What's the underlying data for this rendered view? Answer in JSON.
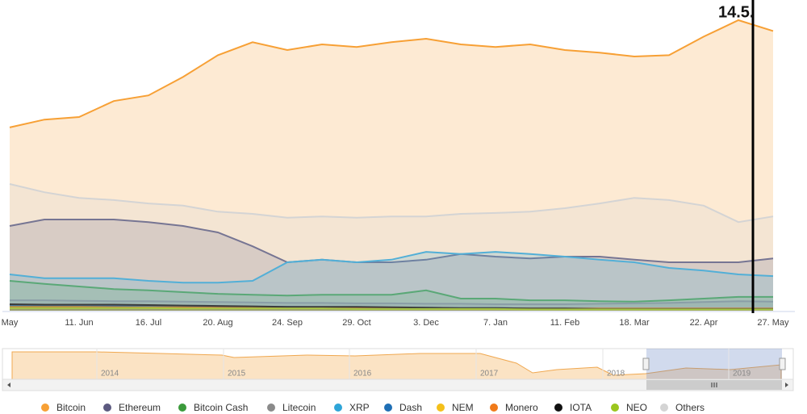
{
  "chart_data": {
    "type": "area",
    "annotation": "14.5.",
    "categories": [
      "May",
      null,
      "11. Jun",
      null,
      "16. Jul",
      null,
      "20. Aug",
      null,
      "24. Sep",
      null,
      "29. Oct",
      null,
      "3. Dec",
      null,
      "7. Jan",
      null,
      "11. Feb",
      null,
      "18. Mar",
      null,
      "22. Apr",
      null,
      "27. May"
    ],
    "ylim": [
      0,
      70
    ],
    "series": [
      {
        "name": "Bitcoin",
        "color": "#f7a035",
        "values": [
          42.4,
          44.2,
          44.8,
          48.5,
          49.8,
          54.1,
          59.1,
          62.1,
          60.3,
          61.6,
          61.0,
          62.1,
          62.9,
          61.6,
          61.0,
          61.6,
          60.3,
          59.7,
          58.8,
          59.1,
          63.4,
          67.2,
          64.7
        ]
      },
      {
        "name": "Ethereum",
        "color": "#5c5a80",
        "values": [
          19.6,
          21.1,
          21.1,
          21.1,
          20.5,
          19.6,
          18.1,
          14.9,
          11.2,
          11.8,
          11.2,
          11.2,
          11.8,
          13.1,
          12.5,
          12.1,
          12.5,
          12.5,
          11.8,
          11.2,
          11.2,
          11.2,
          12.1
        ]
      },
      {
        "name": "Bitcoin Cash",
        "color": "#3b9a3b",
        "values": [
          6.9,
          6.2,
          5.6,
          5.0,
          4.7,
          4.3,
          3.9,
          3.7,
          3.5,
          3.7,
          3.7,
          3.7,
          4.7,
          2.8,
          2.8,
          2.4,
          2.4,
          2.2,
          2.1,
          2.4,
          2.8,
          3.2,
          3.2
        ]
      },
      {
        "name": "Litecoin",
        "color": "#8a8a8a",
        "values": [
          2.4,
          2.4,
          2.3,
          2.2,
          2.2,
          2.1,
          2.0,
          1.9,
          1.8,
          1.8,
          1.7,
          1.7,
          1.6,
          1.6,
          1.5,
          1.5,
          1.5,
          1.6,
          1.7,
          1.8,
          2.0,
          2.2,
          2.1
        ]
      },
      {
        "name": "XRP",
        "color": "#2ea5d8",
        "values": [
          8.4,
          7.5,
          7.5,
          7.5,
          6.9,
          6.5,
          6.5,
          6.9,
          11.2,
          11.8,
          11.2,
          11.8,
          13.6,
          13.1,
          13.6,
          13.1,
          12.5,
          11.8,
          11.2,
          9.9,
          9.3,
          8.4,
          8.0
        ]
      },
      {
        "name": "Dash",
        "color": "#1f6fb5",
        "values": [
          1.2,
          1.2,
          1.2,
          1.1,
          1.1,
          1.0,
          1.0,
          0.9,
          0.9,
          0.8,
          0.8,
          0.7,
          0.7,
          0.6,
          0.6,
          0.5,
          0.5,
          0.5,
          0.5,
          0.5,
          0.5,
          0.5,
          0.5
        ]
      },
      {
        "name": "NEM",
        "color": "#f4c01a",
        "values": [
          0.9,
          0.9,
          0.9,
          0.8,
          0.8,
          0.8,
          0.7,
          0.7,
          0.6,
          0.6,
          0.5,
          0.5,
          0.5,
          0.4,
          0.4,
          0.4,
          0.3,
          0.3,
          0.3,
          0.3,
          0.3,
          0.3,
          0.3
        ]
      },
      {
        "name": "Monero",
        "color": "#f07a1a",
        "values": [
          0.8,
          0.8,
          0.8,
          0.8,
          0.7,
          0.7,
          0.7,
          0.6,
          0.6,
          0.6,
          0.6,
          0.6,
          0.5,
          0.5,
          0.5,
          0.5,
          0.5,
          0.5,
          0.5,
          0.5,
          0.5,
          0.5,
          0.5
        ]
      },
      {
        "name": "IOTA",
        "color": "#111111",
        "values": [
          1.5,
          1.4,
          1.4,
          1.4,
          1.3,
          1.2,
          1.1,
          1.0,
          0.9,
          0.9,
          0.9,
          0.8,
          0.7,
          0.6,
          0.6,
          0.5,
          0.5,
          0.4,
          0.4,
          0.4,
          0.4,
          0.4,
          0.4
        ]
      },
      {
        "name": "NEO",
        "color": "#9bc61e",
        "values": [
          0.6,
          0.6,
          0.6,
          0.6,
          0.6,
          0.5,
          0.5,
          0.5,
          0.5,
          0.5,
          0.4,
          0.4,
          0.4,
          0.4,
          0.4,
          0.3,
          0.3,
          0.3,
          0.3,
          0.3,
          0.3,
          0.3,
          0.3
        ]
      },
      {
        "name": "Others",
        "color": "#d4d4d4",
        "values": [
          29.3,
          27.4,
          26.1,
          25.6,
          24.8,
          24.3,
          22.9,
          22.4,
          21.5,
          21.8,
          21.5,
          21.8,
          21.8,
          22.4,
          22.6,
          22.9,
          23.7,
          24.8,
          26.1,
          25.6,
          24.3,
          20.5,
          21.8
        ]
      }
    ],
    "navigator": {
      "labels": [
        "2014",
        "2015",
        "2016",
        "2017",
        "2018",
        "2019"
      ]
    }
  }
}
